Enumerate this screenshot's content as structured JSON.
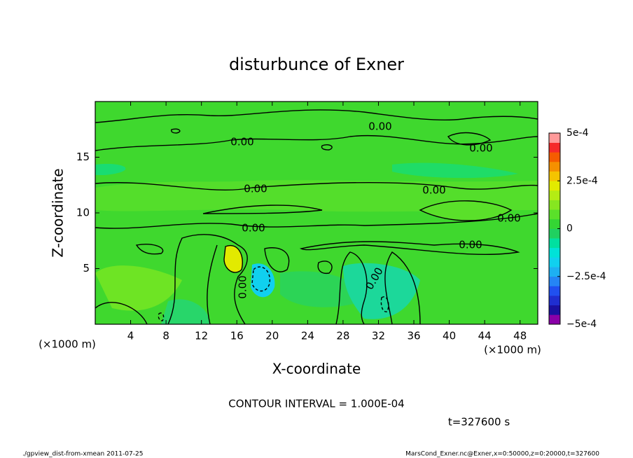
{
  "chart_data": {
    "type": "contour",
    "title": "disturbunce of Exner",
    "x_label": "X-coordinate",
    "y_label": "Z-coordinate",
    "x_unit": "(×1000 m)",
    "x_unit_right": "(×1000 m)",
    "xlim": [
      0,
      50
    ],
    "xticks": [
      4,
      8,
      12,
      16,
      20,
      24,
      28,
      32,
      36,
      40,
      44,
      48
    ],
    "ylim": [
      0,
      20
    ],
    "yticks": [
      5,
      10,
      15
    ],
    "clim": [
      -0.0005,
      0.0005
    ],
    "cticks": [
      {
        "value": 0.0005,
        "label": "5e-4"
      },
      {
        "value": 0.00025,
        "label": "2.5e-4"
      },
      0,
      {
        "value": -0.00025,
        "label": "−2.5e-4"
      },
      {
        "value": -0.0005,
        "label": "−5e-4"
      }
    ],
    "colorbar_colors": [
      "#8a00a8",
      "#1a10a0",
      "#1f2ed0",
      "#2050f0",
      "#2585f5",
      "#1db0f2",
      "#10d0ef",
      "#00e2d8",
      "#00e0a0",
      "#20d060",
      "#34d634",
      "#5ae02a",
      "#86e620",
      "#b4ec14",
      "#e2ea00",
      "#f5c400",
      "#f59000",
      "#f55c00",
      "#f52a2a",
      "#ff9a9a"
    ],
    "contour_labels": [
      "0.00",
      "0.00",
      "0.00",
      "0.00",
      "0.00",
      "0.00",
      "0.00",
      "0.00",
      "0.00",
      "0.00"
    ],
    "contour_interval": "CONTOUR INTERVAL = 1.000E-04",
    "time": "t=327600 s",
    "footer_left": "./gpview_dist-from-xmean   2011-07-25",
    "footer_right": "MarsCond_Exner.nc@Exner,x=0:50000,z=0:20000,t=327600"
  }
}
